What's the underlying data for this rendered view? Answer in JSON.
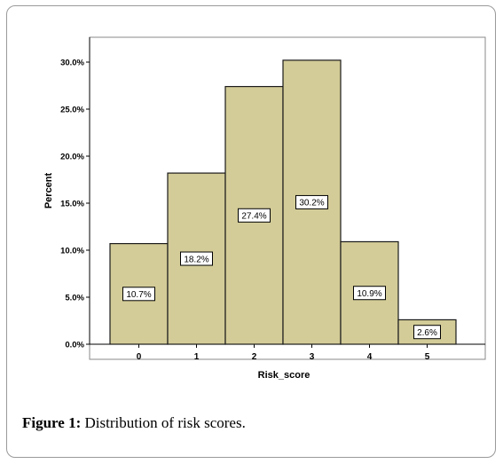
{
  "chart_data": {
    "type": "bar",
    "categories": [
      "0",
      "1",
      "2",
      "3",
      "4",
      "5"
    ],
    "values": [
      10.7,
      18.2,
      27.4,
      30.2,
      10.9,
      2.6
    ],
    "data_labels": [
      "10.7%",
      "18.2%",
      "27.4%",
      "30.2%",
      "10.9%",
      "2.6%"
    ],
    "xlabel": "Risk_score",
    "ylabel": "Percent",
    "ylim": [
      0,
      35
    ],
    "yticks": [
      0,
      5,
      10,
      15,
      20,
      25,
      30
    ],
    "ytick_labels": [
      "0.0%",
      "5.0%",
      "10.0%",
      "15.0%",
      "20.0%",
      "25.0%",
      "30.0%"
    ],
    "grid": false,
    "bar_color": "#d3cc98",
    "bar_edge_color": "#1a1a1a",
    "plot_border_color": "#000000"
  },
  "caption": {
    "label": "Figure 1:",
    "text": " Distribution of risk scores."
  }
}
